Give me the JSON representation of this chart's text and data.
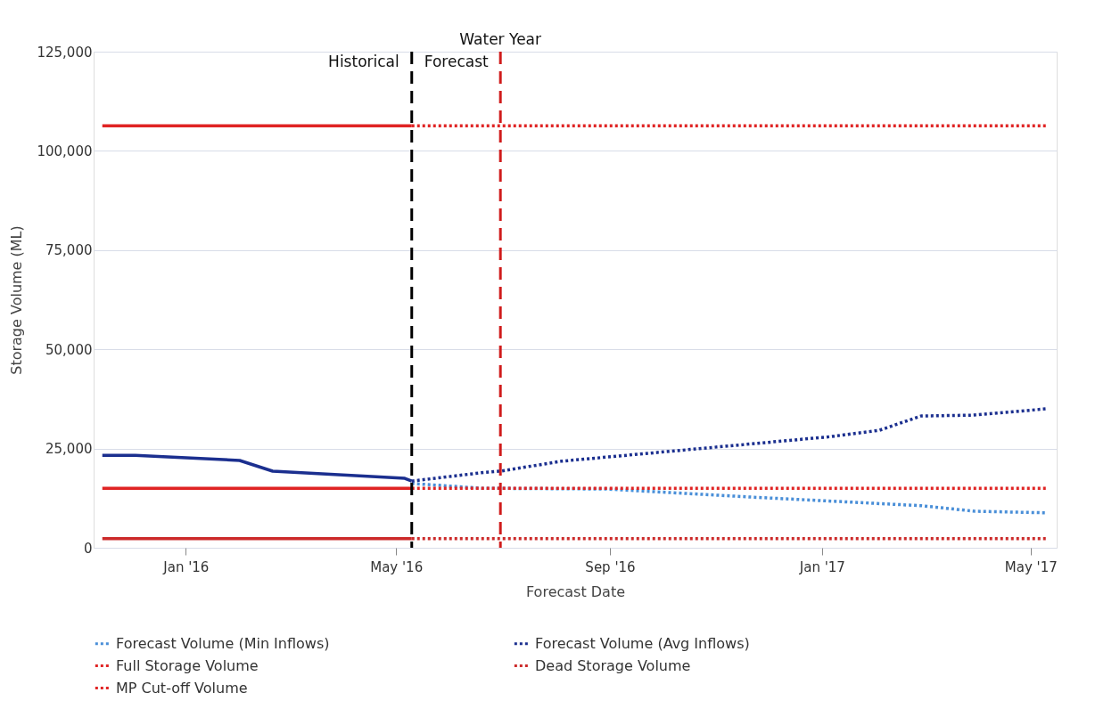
{
  "chart_data": {
    "type": "line",
    "xlabel": "Forecast Date",
    "ylabel": "Storage Volume (ML)",
    "xlim": [
      "2015-11-09",
      "2017-05-16"
    ],
    "ylim": [
      0,
      125000
    ],
    "yticks": [
      0,
      {
        "value": 25000,
        "label": "25,000"
      },
      {
        "value": 50000,
        "label": "50,000"
      },
      {
        "value": 75000,
        "label": "75,000"
      },
      {
        "value": 100000,
        "label": "100,000"
      },
      {
        "value": 125000,
        "label": "125,000"
      }
    ],
    "xticks": [
      {
        "value": "2016-01-01",
        "label": "Jan '16"
      },
      {
        "value": "2016-05-01",
        "label": "May '16"
      },
      {
        "value": "2016-09-01",
        "label": "Sep '16"
      },
      {
        "value": "2017-01-01",
        "label": "Jan '17"
      },
      {
        "value": "2017-05-01",
        "label": "May '17"
      }
    ],
    "grid": "y",
    "legend": "bottom",
    "marker": "none",
    "series": [
      {
        "name": "Forecast Volume (Min Inflows)",
        "color": "#4a8fd8",
        "line_style": "dotted",
        "x": [
          "2016-05-10",
          "2016-06-19",
          "2016-08-30",
          "2016-11-20",
          "2017-02-27",
          "2017-03-30",
          "2017-05-10"
        ],
        "values": [
          16200,
          15000,
          14800,
          12800,
          10600,
          9200,
          8800
        ]
      },
      {
        "name": "Forecast Volume (Avg Inflows)",
        "color": "#1b2f8f",
        "line_style": "dotted",
        "x": [
          "2016-05-10",
          "2016-06-19",
          "2016-06-30",
          "2016-08-04",
          "2017-01-06",
          "2017-02-03",
          "2017-02-27",
          "2017-03-28",
          "2017-05-10"
        ],
        "values": [
          16800,
          18900,
          19300,
          21800,
          28000,
          29600,
          33200,
          33400,
          35000
        ]
      },
      {
        "color": "#1b2f8f",
        "line_style": "solid",
        "x": [
          "2015-11-14",
          "2015-12-03",
          "2016-02-01",
          "2016-02-20",
          "2016-05-06",
          "2016-05-10"
        ],
        "values": [
          23300,
          23300,
          22000,
          19300,
          17500,
          16800
        ]
      },
      {
        "name": "Full Storage Volume",
        "color": "#e02424",
        "line_style": "dotted",
        "x": [
          "2016-05-10",
          "2017-05-10"
        ],
        "values": [
          106300,
          106300
        ]
      },
      {
        "color": "#e02424",
        "line_style": "solid",
        "x": [
          "2015-11-14",
          "2016-05-10"
        ],
        "values": [
          106300,
          106300
        ]
      },
      {
        "name": "Dead Storage Volume",
        "color": "#cc2a2a",
        "line_style": "dotted",
        "x": [
          "2016-05-10",
          "2017-05-10"
        ],
        "values": [
          2300,
          2300
        ]
      },
      {
        "color": "#cc2a2a",
        "line_style": "solid",
        "x": [
          "2015-11-14",
          "2016-05-10"
        ],
        "values": [
          2300,
          2300
        ]
      },
      {
        "name": "MP Cut-off Volume",
        "color": "#e02424",
        "line_style": "dotted",
        "x": [
          "2016-05-10",
          "2017-05-10"
        ],
        "values": [
          15000,
          15000
        ]
      },
      {
        "color": "#e02424",
        "line_style": "solid",
        "x": [
          "2015-11-14",
          "2016-05-10"
        ],
        "values": [
          15000,
          15000
        ]
      }
    ],
    "ref_lines": [
      {
        "axis": "x",
        "value": "2016-05-10",
        "label": null,
        "color": "#000000",
        "line_style": "dashed"
      },
      {
        "axis": "x",
        "value": "2016-06-30",
        "label": "Water Year",
        "color": "#d01c1c",
        "line_style": "dashed"
      }
    ],
    "annotations": [
      "Historical",
      "Forecast"
    ]
  }
}
